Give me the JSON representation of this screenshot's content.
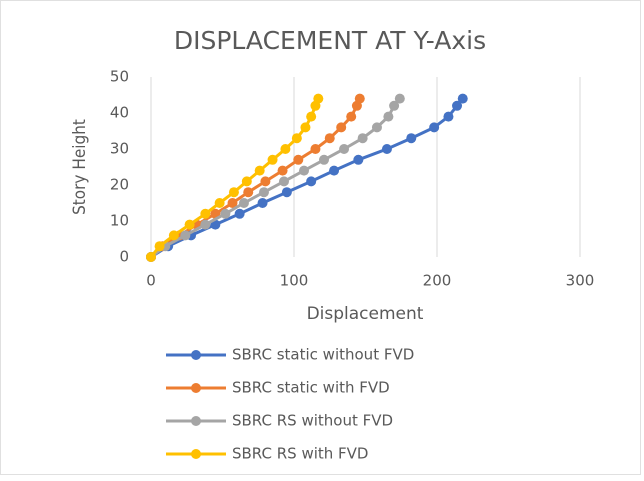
{
  "chart_data": {
    "type": "scatter",
    "title": "DISPLACEMENT AT Y-Axis",
    "xlabel": "Displacement",
    "ylabel": "Story Height",
    "xlim": [
      0,
      300
    ],
    "xticks": [
      0,
      100,
      200,
      300
    ],
    "ylim": [
      0,
      50
    ],
    "yticks": [
      0,
      10,
      20,
      30,
      40,
      50
    ],
    "grid": "x",
    "legend": "bottom",
    "series": [
      {
        "name": "SBRC static without FVD",
        "color": "#4472c4",
        "x": [
          0,
          12,
          28,
          45,
          62,
          78,
          95,
          112,
          128,
          145,
          165,
          182,
          198,
          208,
          214,
          218
        ],
        "values": [
          0,
          3,
          6,
          9,
          12,
          15,
          18,
          21,
          24,
          27,
          30,
          33,
          36,
          39,
          42,
          44
        ]
      },
      {
        "name": "SBRC static with FVD",
        "color": "#ed7d31",
        "x": [
          0,
          8,
          20,
          32,
          45,
          57,
          68,
          80,
          92,
          103,
          115,
          125,
          133,
          140,
          144,
          146
        ],
        "values": [
          0,
          3,
          6,
          9,
          12,
          15,
          18,
          21,
          24,
          27,
          30,
          33,
          36,
          39,
          42,
          44
        ]
      },
      {
        "name": "SBRC RS without FVD",
        "color": "#a5a5a5",
        "x": [
          0,
          10,
          24,
          38,
          52,
          65,
          79,
          93,
          107,
          121,
          135,
          148,
          158,
          166,
          170,
          174
        ],
        "values": [
          0,
          3,
          6,
          9,
          12,
          15,
          18,
          21,
          24,
          27,
          30,
          33,
          36,
          39,
          42,
          44
        ]
      },
      {
        "name": "SBRC RS with FVD",
        "color": "#ffc000",
        "x": [
          0,
          6,
          16,
          27,
          38,
          48,
          58,
          67,
          76,
          85,
          94,
          102,
          108,
          112,
          115,
          117
        ],
        "values": [
          0,
          3,
          6,
          9,
          12,
          15,
          18,
          21,
          24,
          27,
          30,
          33,
          36,
          39,
          42,
          44
        ]
      }
    ]
  }
}
